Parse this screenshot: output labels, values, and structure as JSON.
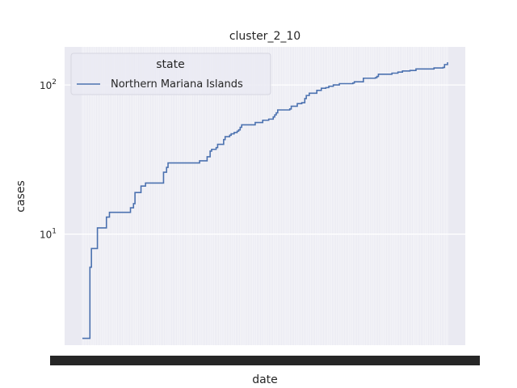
{
  "chart_data": {
    "type": "line",
    "title": "cluster_2_10",
    "xlabel": "date",
    "ylabel": "cases",
    "yscale": "log",
    "ylim": [
      1.8,
      180
    ],
    "yticks": [
      {
        "value": 10,
        "base": "10",
        "exp": "1"
      },
      {
        "value": 100,
        "base": "10",
        "exp": "2"
      }
    ],
    "grid": true,
    "legend": {
      "title": "state",
      "placement": "top-left",
      "entries": [
        {
          "name": "Northern Mariana Islands",
          "color": "#4c72b0"
        }
      ]
    },
    "x_tick_labels_overlapping": true,
    "series": [
      {
        "name": "Northern Mariana Islands",
        "color": "#4c72b0",
        "points": [
          [
            0,
            2
          ],
          [
            4,
            2
          ],
          [
            5,
            6
          ],
          [
            6,
            8
          ],
          [
            9,
            8
          ],
          [
            10,
            11
          ],
          [
            15,
            11
          ],
          [
            16,
            13
          ],
          [
            17,
            13
          ],
          [
            18,
            14
          ],
          [
            30,
            14
          ],
          [
            32,
            15
          ],
          [
            34,
            16
          ],
          [
            35,
            19
          ],
          [
            38,
            19
          ],
          [
            39,
            21
          ],
          [
            41,
            21
          ],
          [
            42,
            22
          ],
          [
            51,
            22
          ],
          [
            54,
            26
          ],
          [
            56,
            28
          ],
          [
            57,
            30
          ],
          [
            77,
            30
          ],
          [
            78,
            31
          ],
          [
            82,
            31
          ],
          [
            83,
            33
          ],
          [
            84,
            33
          ],
          [
            85,
            36
          ],
          [
            86,
            37
          ],
          [
            89,
            38
          ],
          [
            90,
            40
          ],
          [
            92,
            40
          ],
          [
            94,
            43
          ],
          [
            95,
            45
          ],
          [
            98,
            46
          ],
          [
            99,
            47
          ],
          [
            101,
            48
          ],
          [
            103,
            49
          ],
          [
            104,
            50
          ],
          [
            105,
            52
          ],
          [
            106,
            54
          ],
          [
            114,
            54
          ],
          [
            115,
            56
          ],
          [
            117,
            56
          ],
          [
            120,
            58
          ],
          [
            124,
            59
          ],
          [
            127,
            61
          ],
          [
            128,
            63
          ],
          [
            129,
            65
          ],
          [
            130,
            68
          ],
          [
            138,
            69
          ],
          [
            139,
            72
          ],
          [
            142,
            72
          ],
          [
            143,
            75
          ],
          [
            146,
            76
          ],
          [
            148,
            81
          ],
          [
            149,
            85
          ],
          [
            151,
            88
          ],
          [
            155,
            88
          ],
          [
            156,
            92
          ],
          [
            158,
            92
          ],
          [
            159,
            95
          ],
          [
            162,
            96
          ],
          [
            164,
            98
          ],
          [
            167,
            100
          ],
          [
            171,
            102
          ],
          [
            180,
            103
          ],
          [
            181,
            105
          ],
          [
            186,
            105
          ],
          [
            187,
            111
          ],
          [
            195,
            112
          ],
          [
            196,
            114
          ],
          [
            197,
            118
          ],
          [
            205,
            118
          ],
          [
            206,
            120
          ],
          [
            210,
            122
          ],
          [
            213,
            124
          ],
          [
            218,
            125
          ],
          [
            222,
            128
          ],
          [
            232,
            128
          ],
          [
            234,
            130
          ],
          [
            240,
            131
          ],
          [
            241,
            137
          ],
          [
            243,
            142
          ]
        ]
      }
    ]
  }
}
